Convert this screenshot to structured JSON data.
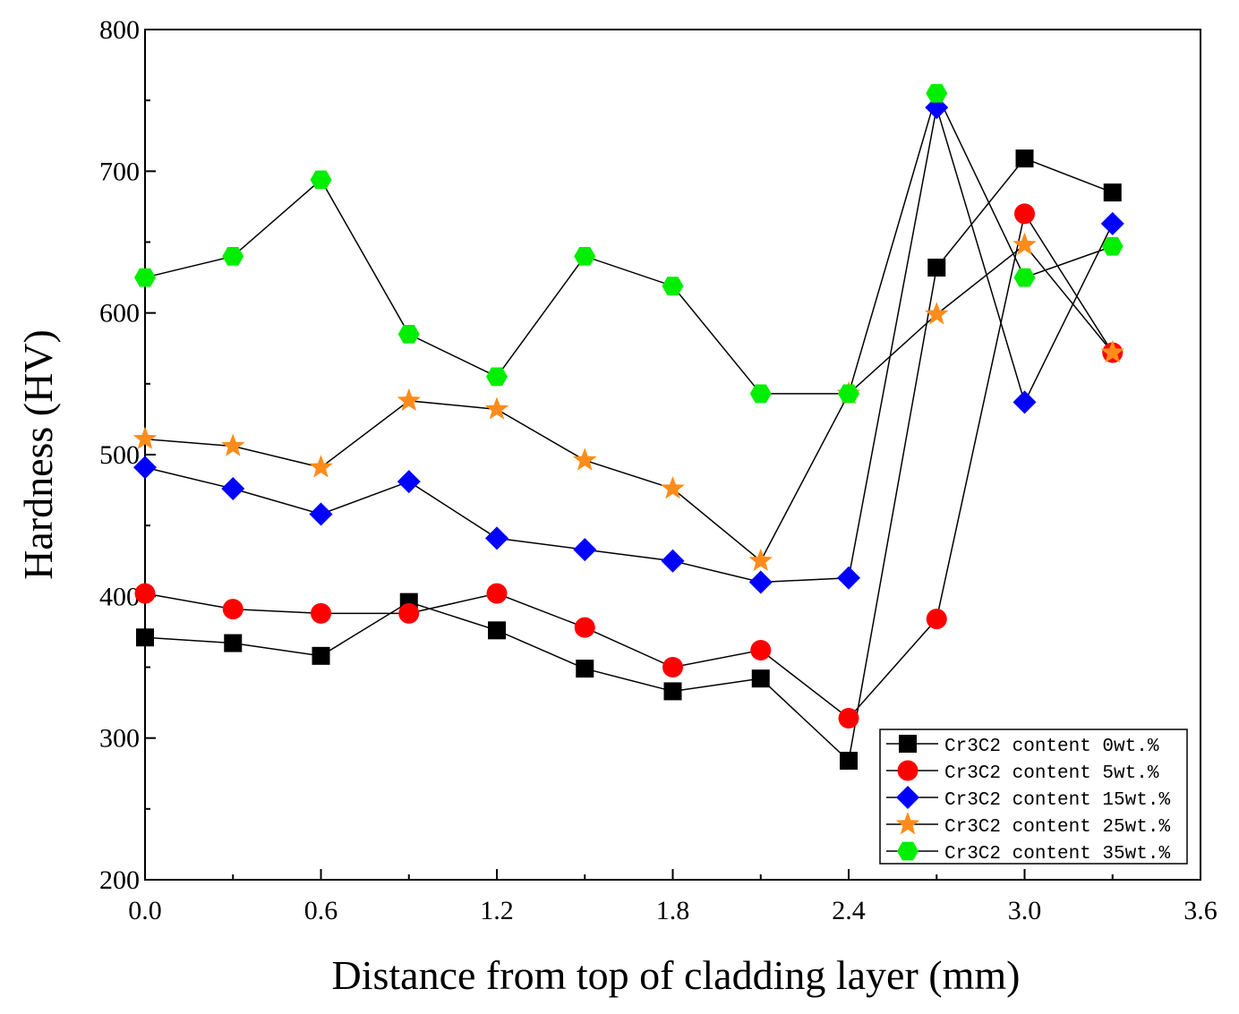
{
  "chart_data": {
    "type": "line",
    "title": "",
    "xlabel": "Distance from top of cladding layer (mm)",
    "ylabel": "Hardness (HV)",
    "xlim": [
      0.0,
      3.6
    ],
    "ylim": [
      200,
      800
    ],
    "xticks": [
      0.0,
      0.6,
      1.2,
      1.8,
      2.4,
      3.0,
      3.6
    ],
    "xtick_labels": [
      "0.0",
      "0.6",
      "1.2",
      "1.8",
      "2.4",
      "3.0",
      "3.6"
    ],
    "yticks": [
      200,
      300,
      400,
      500,
      600,
      700,
      800
    ],
    "ytick_labels": [
      "200",
      "300",
      "400",
      "500",
      "600",
      "700",
      "800"
    ],
    "grid": false,
    "legend_position": "bottom-right",
    "x": [
      0.0,
      0.3,
      0.6,
      0.9,
      1.2,
      1.5,
      1.8,
      2.1,
      2.4,
      2.7,
      3.0,
      3.3
    ],
    "series": [
      {
        "name": "Cr3C2 content 0wt.%",
        "marker": "square",
        "color": "#000000",
        "values": [
          371,
          367,
          358,
          396,
          376,
          349,
          333,
          342,
          284,
          632,
          709,
          685
        ]
      },
      {
        "name": "Cr3C2 content 5wt.%",
        "marker": "circle",
        "color": "#ff0000",
        "values": [
          402,
          391,
          388,
          388,
          402,
          378,
          350,
          362,
          314,
          384,
          670,
          572
        ]
      },
      {
        "name": "Cr3C2 content 15wt.%",
        "marker": "diamond",
        "color": "#0000ff",
        "values": [
          491,
          476,
          458,
          481,
          441,
          433,
          425,
          410,
          413,
          745,
          537,
          663
        ]
      },
      {
        "name": "Cr3C2 content 25wt.%",
        "marker": "star",
        "color": "#ff8c1a",
        "values": [
          511,
          506,
          491,
          538,
          532,
          496,
          476,
          425,
          543,
          599,
          648,
          572
        ]
      },
      {
        "name": "Cr3C2 content 35wt.%",
        "marker": "hexagon",
        "color": "#00ee00",
        "values": [
          625,
          640,
          694,
          585,
          555,
          640,
          619,
          543,
          543,
          755,
          625,
          647
        ]
      }
    ]
  }
}
